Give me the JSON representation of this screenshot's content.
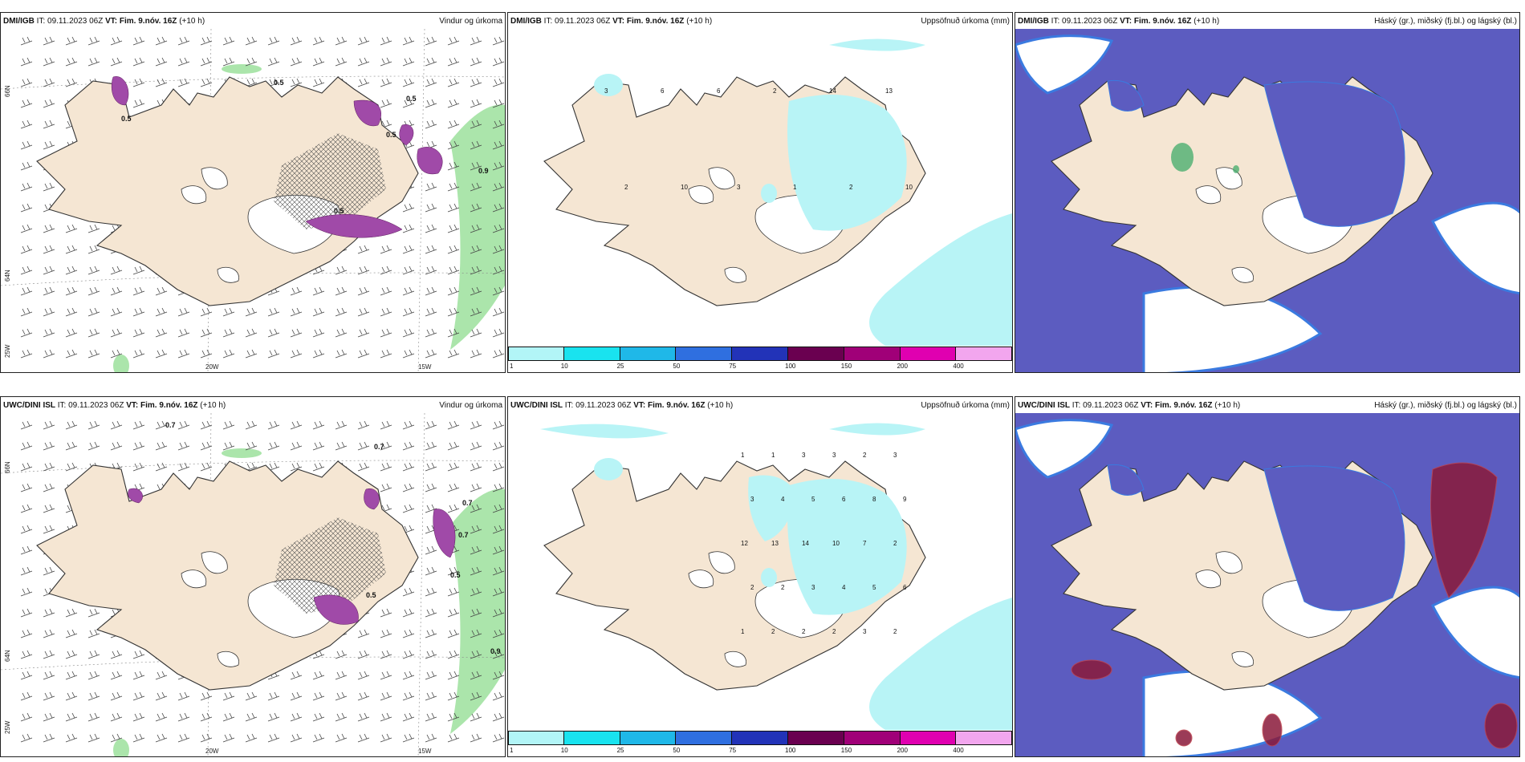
{
  "top_row": {
    "wind": {
      "model": "DMI/IGB",
      "it_label": "IT:",
      "it_value": "09.11.2023 06Z",
      "vt_label": "VT:",
      "vt_value": "Fim. 9.nóv. 16Z",
      "lead": "(+10 h)",
      "title": "Vindur og úrkoma",
      "values": [
        "0.5",
        "0.9",
        "0.5",
        "0.5",
        "0.5",
        "0.5"
      ]
    },
    "precip": {
      "model": "DMI/IGB",
      "it_label": "IT:",
      "it_value": "09.11.2023 06Z",
      "vt_label": "VT:",
      "vt_value": "Fim. 9.nóv. 16Z",
      "lead": "(+10 h)",
      "title": "Uppsöfnuð úrkoma (mm)",
      "values": [
        "3",
        "6",
        "6",
        "2",
        "14",
        "13",
        "2",
        "10",
        "3",
        "1",
        "2",
        "10"
      ]
    },
    "cloud": {
      "model": "DMI/IGB",
      "it_label": "IT:",
      "it_value": "09.11.2023 06Z",
      "vt_label": "VT:",
      "vt_value": "Fim. 9.nóv. 16Z",
      "lead": "(+10 h)",
      "title": "Háský (gr.), miðský (fj.bl.) og lágský (bl.)"
    }
  },
  "bottom_row": {
    "wind": {
      "model": "UWC/DINI ISL",
      "it_label": "IT:",
      "it_value": "09.11.2023 06Z",
      "vt_label": "VT:",
      "vt_value": "Fim. 9.nóv. 16Z",
      "lead": "(+10 h)",
      "title": "Vindur og úrkoma",
      "values": [
        "0.7",
        "0.7",
        "0.7",
        "0.9",
        "0.5",
        "0.5",
        "0.7"
      ]
    },
    "precip": {
      "model": "UWC/DINI ISL",
      "it_label": "IT:",
      "it_value": "09.11.2023 06Z",
      "vt_label": "VT:",
      "vt_value": "Fim. 9.nóv. 16Z",
      "lead": "(+10 h)",
      "title": "Uppsöfnuð úrkoma (mm)",
      "values": [
        "1",
        "1",
        "3",
        "3",
        "2",
        "3",
        "3",
        "4",
        "5",
        "6",
        "8",
        "9",
        "12",
        "13",
        "14",
        "10",
        "7",
        "2",
        "2",
        "2",
        "3",
        "4",
        "5",
        "6",
        "1",
        "2",
        "2",
        "2",
        "3",
        "2"
      ]
    },
    "cloud": {
      "model": "UWC/DINI ISL",
      "it_label": "IT:",
      "it_value": "09.11.2023 06Z",
      "vt_label": "VT:",
      "vt_value": "Fim. 9.nóv. 16Z",
      "lead": "(+10 h)",
      "title": "Háský (gr.), miðský (fj.bl.) og lágský (bl.)"
    }
  },
  "coords": {
    "lat66": "66N",
    "lat64": "64N",
    "lon25": "25W",
    "lon20": "20W",
    "lon15": "15W"
  },
  "colorbar": {
    "labels": [
      "1",
      "10",
      "25",
      "50",
      "75",
      "100",
      "150",
      "200",
      "400"
    ],
    "colors": [
      "#b2f5f7",
      "#19e3ef",
      "#1fb8e8",
      "#2f6fe0",
      "#2233b8",
      "#6a0050",
      "#a00078",
      "#e000b0",
      "#f2a6ee"
    ]
  },
  "colors": {
    "land": "#f5e6d3",
    "coast": "#333333",
    "precip_light": "#b8f4f6",
    "cloud_mid": "#5c5cc0",
    "cloud_low_edge": "#3a7ae0",
    "cloud_high": "#8a1a3a",
    "rain_green": "#8fdc8f",
    "rain_purple": "#a04aa8"
  }
}
